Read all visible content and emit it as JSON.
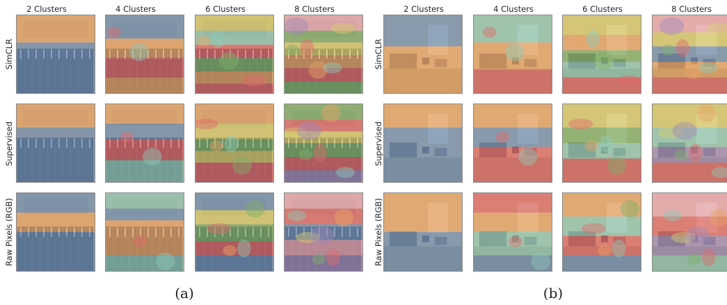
{
  "figure": {
    "panels": [
      {
        "caption": "(a)",
        "columns": [
          "2 Clusters",
          "4 Clusters",
          "6 Clusters",
          "8 Clusters"
        ],
        "rows": [
          "SimCLR",
          "Supervised",
          "Raw Pixels (RGB)"
        ],
        "scene": "group-photo"
      },
      {
        "caption": "(b)",
        "columns": [
          "2 Clusters",
          "4 Clusters",
          "6 Clusters",
          "8 Clusters"
        ],
        "rows": [
          "SimCLR",
          "Supervised",
          "Raw Pixels (RGB)"
        ],
        "scene": "living-room"
      }
    ]
  },
  "colors": {
    "blue": "#6f8fb5",
    "orange": "#e8a466",
    "red": "#e06a6a",
    "green": "#7fb06a",
    "yellow": "#d8cc6c",
    "teal": "#8fc7b6",
    "purple": "#a08ab8",
    "pink": "#eba7b4"
  }
}
